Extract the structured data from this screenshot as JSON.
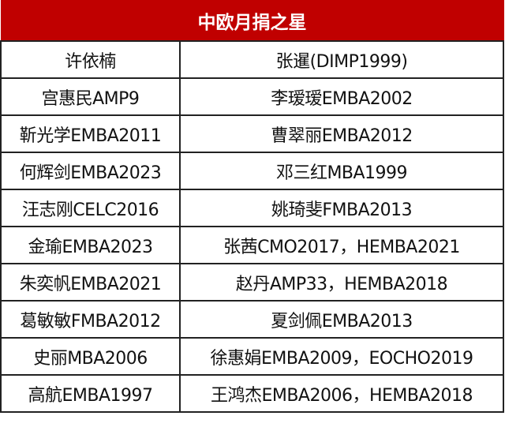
{
  "title": "中欧月捐之星",
  "colors": {
    "header_bg": "#c00000",
    "header_text": "#ffffff"
  },
  "rows": [
    [
      "许依楠",
      "张暹(DIMP1999)"
    ],
    [
      "宫惠民AMP9",
      "李瑷瑷EMBA2002"
    ],
    [
      "靳光学EMBA2011",
      "曹翠丽EMBA2012"
    ],
    [
      "何辉剑EMBA2023",
      "邓三红MBA1999"
    ],
    [
      "汪志刚CELC2016",
      "姚琦斐FMBA2013"
    ],
    [
      "金瑜EMBA2023",
      "张茜CMO2017，HEMBA2021"
    ],
    [
      "朱奕帆EMBA2021",
      "赵丹AMP33，HEMBA2018"
    ],
    [
      "葛敏敏FMBA2012",
      "夏剑佩EMBA2013"
    ],
    [
      "史丽MBA2006",
      "徐惠娟EMBA2009，EOCHO2019"
    ],
    [
      "高航EMBA1997",
      "王鸿杰EMBA2006，HEMBA2018"
    ]
  ]
}
